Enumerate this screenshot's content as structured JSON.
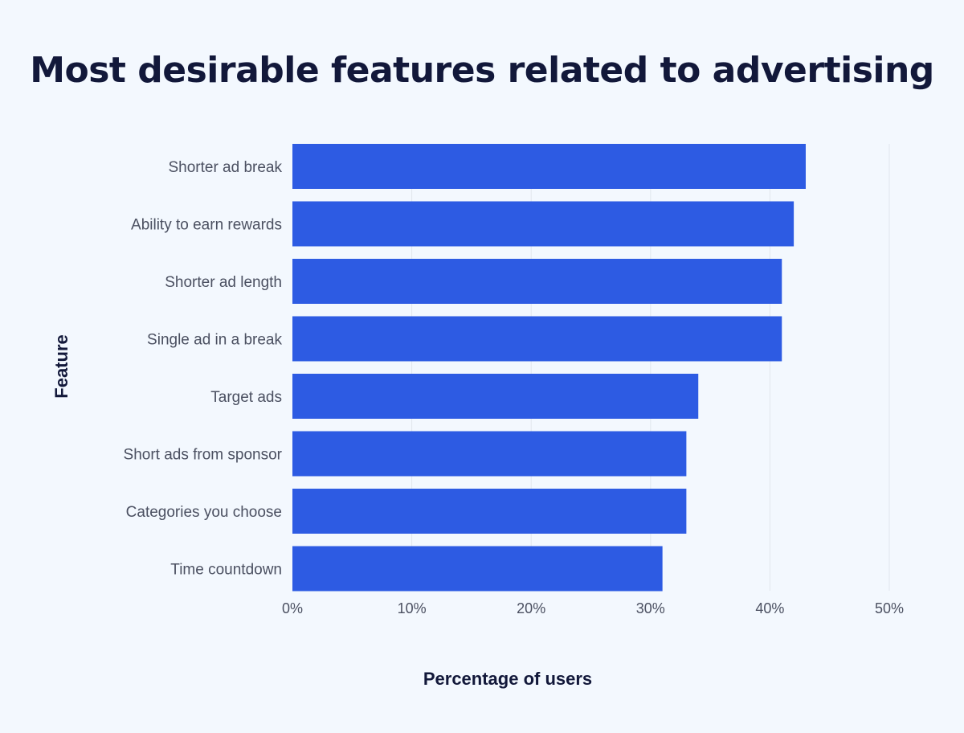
{
  "chart_data": {
    "type": "bar",
    "orientation": "horizontal",
    "title": "Most desirable features related to advertising",
    "xlabel": "Percentage of users",
    "ylabel": "Feature",
    "categories": [
      "Shorter ad break",
      "Ability to earn rewards",
      "Shorter ad length",
      "Single ad in a break",
      "Target ads",
      "Short ads from sponsor",
      "Categories you choose",
      "Time countdown"
    ],
    "values": [
      43,
      42,
      41,
      41,
      34,
      33,
      33,
      31
    ],
    "unit": "%",
    "xlim": [
      0,
      50
    ],
    "xticks": [
      "0%",
      "10%",
      "20%",
      "30%",
      "40%",
      "50%"
    ],
    "grid": true,
    "bar_color": "#2d5be3"
  }
}
